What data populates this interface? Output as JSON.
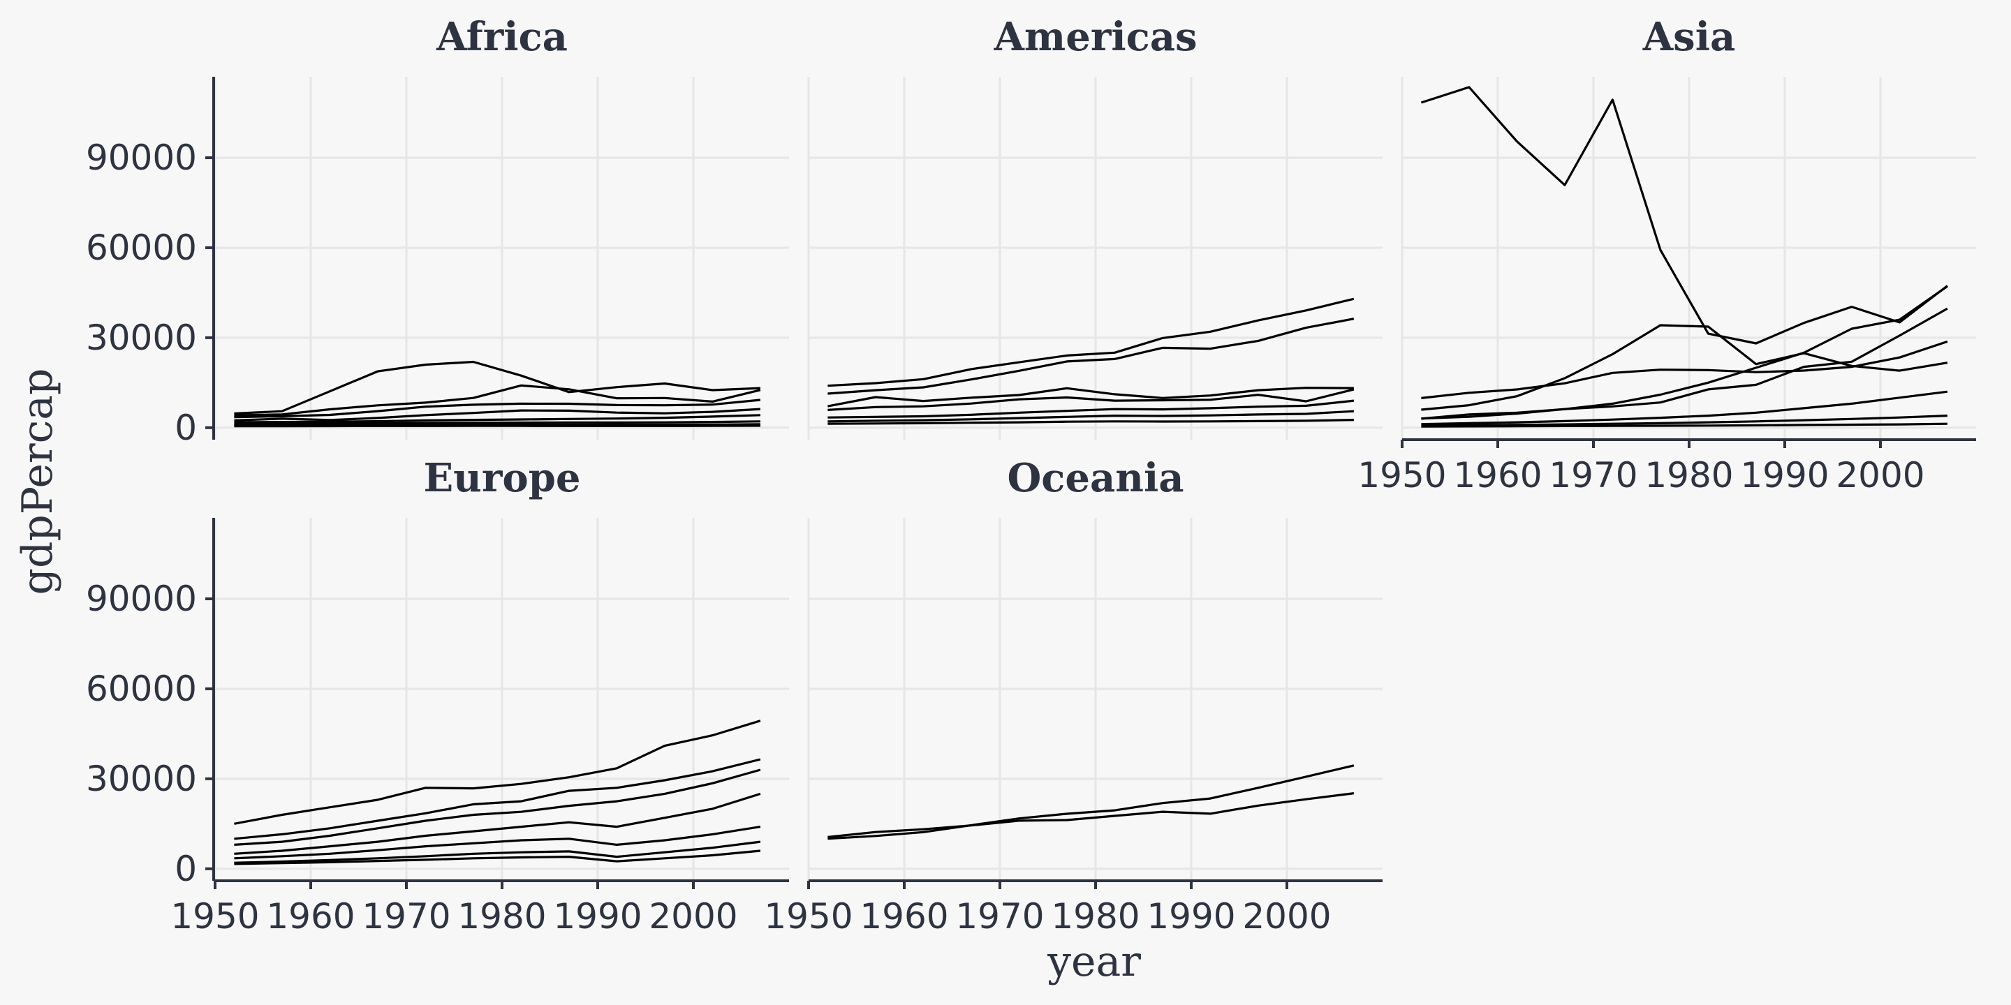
{
  "chart_data": {
    "type": "line",
    "xlabel": "year",
    "ylabel": "gdpPercap",
    "x_ticks": [
      1950,
      1960,
      1970,
      1980,
      1990,
      2000
    ],
    "y_ticks": [
      0,
      30000,
      60000,
      90000
    ],
    "xlim": [
      1950,
      2010
    ],
    "ylim": [
      -4000,
      117000
    ],
    "grid": true,
    "years": [
      1952,
      1957,
      1962,
      1967,
      1972,
      1977,
      1982,
      1987,
      1992,
      1997,
      2002,
      2007
    ],
    "facets": [
      {
        "name": "Africa",
        "series": [
          {
            "values": [
              4725,
              5487,
              12119,
              18773,
              21011,
              21951,
              17364,
              11864,
              13522,
              14723,
              12521,
              13206
            ]
          },
          {
            "values": [
              3520,
              3828,
              4269,
              5523,
              7003,
              7668,
              8006,
              7985,
              7533,
              7480,
              7710,
              9269
            ]
          },
          {
            "values": [
              4125,
              4430,
              6119,
              7460,
              8358,
              9910,
              14070,
              12800,
              9800,
              9900,
              8700,
              12570
            ]
          },
          {
            "values": [
              2449,
              3014,
              2551,
              3247,
              4183,
              4910,
              5745,
              5681,
              5023,
              4797,
              5288,
              6223
            ]
          },
          {
            "values": [
              1830,
              1920,
              2000,
              2150,
              2430,
              2600,
              2750,
              2900,
              3050,
              3300,
              3700,
              4200
            ]
          },
          {
            "values": [
              1200,
              1280,
              1380,
              1470,
              1560,
              1650,
              1700,
              1740,
              1720,
              1780,
              1900,
              2100
            ]
          },
          {
            "values": [
              800,
              850,
              900,
              960,
              1000,
              1050,
              1060,
              1040,
              990,
              1000,
              1050,
              1150
            ]
          },
          {
            "values": [
              500,
              520,
              540,
              570,
              590,
              610,
              600,
              580,
              560,
              570,
              600,
              650
            ]
          }
        ]
      },
      {
        "name": "Americas",
        "series": [
          {
            "values": [
              13990,
              14847,
              16173,
              19530,
              21806,
              24073,
              25010,
              29884,
              32004,
              35767,
              39097,
              42952
            ]
          },
          {
            "values": [
              11367,
              12490,
              13462,
              16077,
              18971,
              22091,
              22899,
              26627,
              26343,
              28955,
              33329,
              36319
            ]
          },
          {
            "values": [
              5911,
              6857,
              7133,
              8053,
              9443,
              10079,
              8998,
              9139,
              9308,
              10967,
              8798,
              12779
            ]
          },
          {
            "values": [
              7144,
              10187,
              8900,
              10000,
              10900,
              13144,
              11152,
              9883,
              10733,
              12500,
              13300,
              13206
            ]
          },
          {
            "values": [
              3400,
              3600,
              3800,
              4300,
              5000,
              5600,
              6200,
              6100,
              6500,
              7000,
              7300,
              9000
            ]
          },
          {
            "values": [
              2100,
              2300,
              2500,
              2800,
              3200,
              3600,
              4000,
              3900,
              4100,
              4400,
              4600,
              5500
            ]
          },
          {
            "values": [
              1300,
              1400,
              1500,
              1650,
              1800,
              2000,
              2100,
              2050,
              2100,
              2200,
              2300,
              2600
            ]
          }
        ]
      },
      {
        "name": "Asia",
        "series": [
          {
            "values": [
              108382,
              113523,
              95458,
              80895,
              109348,
              59265,
              31354,
              28118,
              34932,
              40301,
              35110,
              47307
            ]
          },
          {
            "values": [
              9867,
              11636,
              12753,
              14805,
              18269,
              19340,
              19211,
              18525,
              19035,
              20292,
              23404,
              28718
            ]
          },
          {
            "values": [
              6000,
              7500,
              10500,
              16500,
              24500,
              34167,
              33693,
              21198,
              24841,
              20586,
              19014,
              21655
            ]
          },
          {
            "values": [
              3054,
              3629,
              4693,
              6197,
              7105,
              8393,
              12786,
              14286,
              20300,
              22000,
              30700,
              39724
            ]
          },
          {
            "values": [
              3000,
              4400,
              5000,
              6200,
              8000,
              11000,
              15000,
              20000,
              25000,
              33000,
              36000,
              47143
            ]
          },
          {
            "values": [
              1200,
              1500,
              1800,
              2200,
              2700,
              3300,
              4000,
              5000,
              6500,
              8000,
              10000,
              12000
            ]
          },
          {
            "values": [
              700,
              800,
              950,
              1100,
              1300,
              1500,
              1800,
              2100,
              2500,
              2900,
              3400,
              4000
            ]
          },
          {
            "values": [
              400,
              450,
              500,
              550,
              600,
              650,
              700,
              800,
              900,
              1000,
              1100,
              1300
            ]
          }
        ]
      },
      {
        "name": "Europe",
        "series": [
          {
            "values": [
              15000,
              18000,
              20500,
              23000,
              27000,
              26800,
              28300,
              30500,
              33500,
              41000,
              44500,
              49357
            ]
          },
          {
            "values": [
              10000,
              11500,
              13500,
              16000,
              18500,
              21500,
              22500,
              26000,
              27000,
              29500,
              32500,
              36500
            ]
          },
          {
            "values": [
              8000,
              9000,
              11000,
              13500,
              16000,
              18000,
              19000,
              21000,
              22500,
              25000,
              28500,
              33000
            ]
          },
          {
            "values": [
              5000,
              6000,
              7500,
              9000,
              11000,
              12500,
              14000,
              15500,
              14000,
              17000,
              20000,
              25000
            ]
          },
          {
            "values": [
              3500,
              4200,
              5000,
              6200,
              7500,
              8500,
              9500,
              10000,
              8000,
              9500,
              11500,
              14000
            ]
          },
          {
            "values": [
              2000,
              2400,
              2900,
              3500,
              4200,
              5000,
              5500,
              5800,
              4000,
              5500,
              7000,
              9000
            ]
          },
          {
            "values": [
              1600,
              1900,
              2200,
              2600,
              3000,
              3500,
              3800,
              4000,
              2500,
              3500,
              4500,
              6000
            ]
          }
        ]
      },
      {
        "name": "Oceania",
        "series": [
          {
            "values": [
              10040,
              10950,
              12217,
              14526,
              16789,
              18334,
              19477,
              21889,
              23425,
              26998,
              30688,
              34435
            ]
          },
          {
            "values": [
              10557,
              12247,
              13176,
              14464,
              16046,
              16234,
              17632,
              19007,
              18363,
              21050,
              23190,
              25185
            ]
          }
        ]
      }
    ]
  }
}
